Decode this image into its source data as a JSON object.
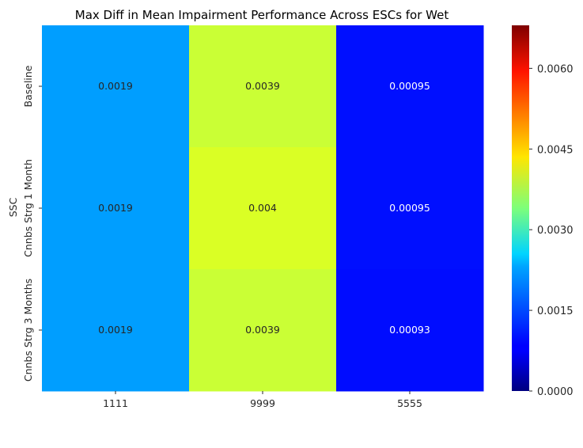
{
  "chart_data": {
    "type": "heatmap",
    "title": "Max Diff in Mean Impairment Performance Across ESCs for Wet",
    "xlabel": "",
    "ylabel": "SSC",
    "x_categories": [
      "1111",
      "9999",
      "5555"
    ],
    "y_categories": [
      "Baseline",
      "Cnnbs Strg 1 Month",
      "Cnnbs Strg 3 Months"
    ],
    "values": [
      [
        0.0019,
        0.0039,
        0.00095
      ],
      [
        0.0019,
        0.004,
        0.00095
      ],
      [
        0.0019,
        0.0039,
        0.00093
      ]
    ],
    "cell_labels": [
      [
        "0.0019",
        "0.0039",
        "0.00095"
      ],
      [
        "0.0019",
        "0.004",
        "0.00095"
      ],
      [
        "0.0019",
        "0.0039",
        "0.00093"
      ]
    ],
    "colormap": "jet",
    "colorbar": {
      "vmin": 0.0,
      "vmax": 0.0068,
      "ticks": [
        0.0,
        0.0015,
        0.003,
        0.0045,
        0.006
      ],
      "tick_labels": [
        "0.0000",
        "0.0015",
        "0.0030",
        "0.0045",
        "0.0060"
      ]
    },
    "label_colors": {
      "dark_bg": "#ffffff",
      "light_bg": "#262626"
    }
  }
}
